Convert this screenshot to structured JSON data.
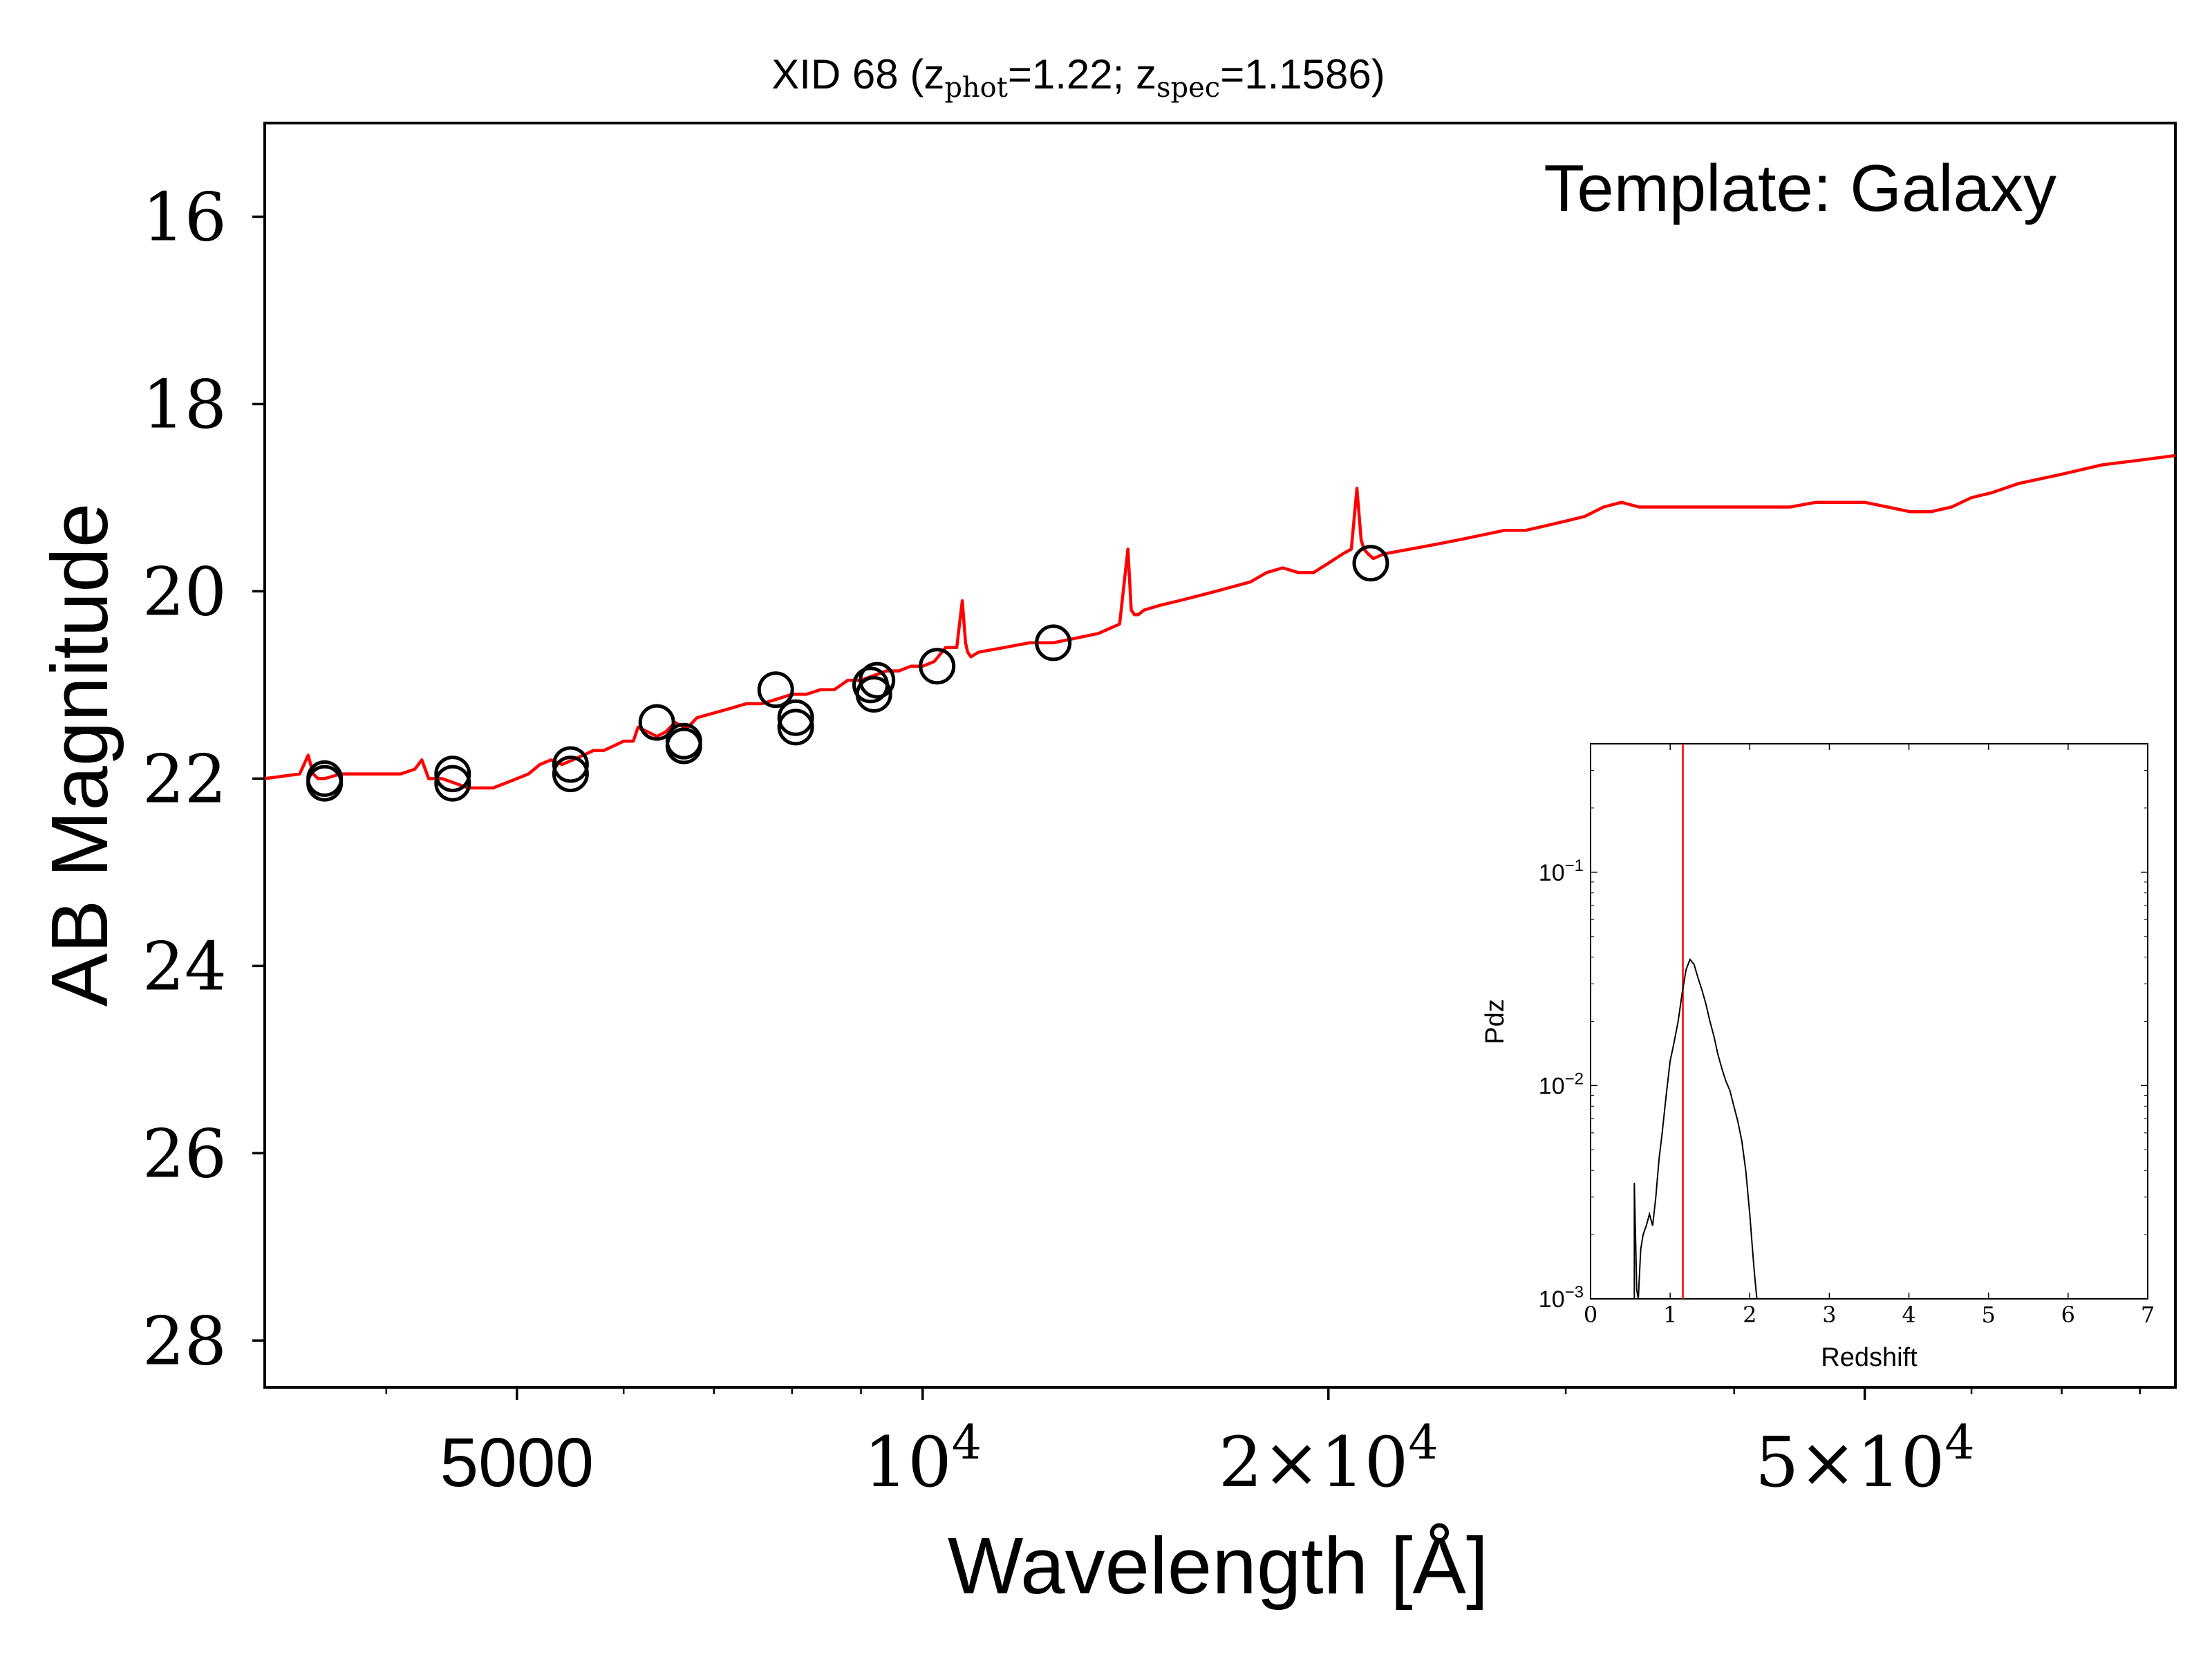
{
  "chart_data": [
    {
      "type": "line",
      "title": "XID 68 (z_phot=1.22; z_spec=1.1586)",
      "title_parts": {
        "prefix": "XID 68 (z",
        "sub1": "phot",
        "mid": "=1.22; z",
        "sub2": "spec",
        "suffix": "=1.1586)"
      },
      "xlabel": "Wavelength [Å]",
      "ylabel": "AB Magnitude",
      "x_scale": "log",
      "y_inverted": true,
      "xlim": [
        3250,
        85000
      ],
      "ylim": [
        28.5,
        15
      ],
      "grid": false,
      "x_ticks": [
        {
          "value": 5000,
          "label": "5000"
        },
        {
          "value": 10000,
          "base": "10",
          "exp": "4"
        },
        {
          "value": 20000,
          "mant": "2×10",
          "exp": "4"
        },
        {
          "value": 50000,
          "mant": "5×10",
          "exp": "4"
        }
      ],
      "y_ticks": [
        16,
        18,
        20,
        22,
        24,
        26,
        28
      ],
      "annotation": "Template: Galaxy",
      "series": [
        {
          "kind": "line",
          "color": "#ff0000",
          "x": [
            3250,
            3450,
            3500,
            3530,
            3560,
            3600,
            3700,
            3800,
            3900,
            4000,
            4100,
            4200,
            4250,
            4300,
            4400,
            4500,
            4600,
            4700,
            4800,
            4900,
            5000,
            5100,
            5200,
            5300,
            5400,
            5500,
            5600,
            5700,
            5800,
            5900,
            6000,
            6100,
            6150,
            6250,
            6350,
            6450,
            6550,
            6650,
            6700,
            6800,
            7000,
            7200,
            7400,
            7600,
            7800,
            8000,
            8200,
            8400,
            8600,
            8800,
            9000,
            9200,
            9400,
            9600,
            9800,
            10000,
            10200,
            10400,
            10600,
            10700,
            10760,
            10800,
            10860,
            11000,
            11500,
            12000,
            12500,
            13000,
            13500,
            14000,
            14100,
            14200,
            14280,
            14360,
            14450,
            14600,
            15000,
            15500,
            16000,
            16500,
            17000,
            17500,
            18000,
            18500,
            19000,
            19500,
            20000,
            20500,
            20800,
            21000,
            21150,
            21250,
            21400,
            21600,
            22000,
            23000,
            24000,
            25000,
            26000,
            27000,
            28000,
            29000,
            30000,
            31000,
            32000,
            33000,
            34000,
            35000,
            36000,
            38000,
            40000,
            42000,
            44000,
            46000,
            48000,
            50000,
            52000,
            54000,
            56000,
            58000,
            60000,
            62000,
            65000,
            70000,
            75000,
            80000,
            85000
          ],
          "y": [
            22.0,
            21.95,
            21.75,
            21.95,
            22.0,
            22.0,
            21.95,
            21.95,
            21.95,
            21.95,
            21.95,
            21.9,
            21.8,
            22.0,
            22.0,
            22.05,
            22.1,
            22.1,
            22.1,
            22.05,
            22.0,
            21.95,
            21.85,
            21.8,
            21.85,
            21.8,
            21.75,
            21.7,
            21.7,
            21.65,
            21.6,
            21.6,
            21.45,
            21.5,
            21.55,
            21.5,
            21.4,
            21.45,
            21.45,
            21.35,
            21.3,
            21.25,
            21.2,
            21.2,
            21.15,
            21.1,
            21.1,
            21.05,
            21.05,
            20.95,
            20.95,
            20.9,
            20.85,
            20.85,
            20.8,
            20.8,
            20.75,
            20.6,
            20.6,
            20.1,
            20.55,
            20.65,
            20.7,
            20.65,
            20.6,
            20.55,
            20.55,
            20.5,
            20.45,
            20.35,
            19.95,
            19.55,
            20.2,
            20.25,
            20.25,
            20.2,
            20.15,
            20.1,
            20.05,
            20.0,
            19.95,
            19.9,
            19.8,
            19.75,
            19.8,
            19.8,
            19.7,
            19.6,
            19.55,
            18.9,
            19.45,
            19.55,
            19.6,
            19.65,
            19.6,
            19.55,
            19.5,
            19.45,
            19.4,
            19.35,
            19.35,
            19.3,
            19.25,
            19.2,
            19.1,
            19.05,
            19.1,
            19.1,
            19.1,
            19.1,
            19.1,
            19.1,
            19.1,
            19.05,
            19.05,
            19.05,
            19.1,
            19.15,
            19.15,
            19.1,
            19.0,
            18.95,
            18.85,
            18.75,
            18.65,
            18.6,
            18.55
          ]
        },
        {
          "kind": "markers",
          "marker": "open-circle",
          "color": "#000000",
          "x": [
            3600,
            3600,
            4480,
            4480,
            5480,
            5480,
            6350,
            6650,
            6650,
            7780,
            8050,
            8050,
            9200,
            9250,
            9150,
            10250,
            12500,
            21500
          ],
          "y": [
            22.0,
            22.05,
            22.05,
            21.95,
            21.85,
            21.95,
            21.4,
            21.65,
            21.6,
            21.05,
            21.35,
            21.45,
            21.1,
            20.95,
            21.0,
            20.8,
            20.55,
            19.7
          ]
        }
      ]
    },
    {
      "type": "line",
      "title": "",
      "xlabel": "Redshift",
      "ylabel": "Pdz",
      "y_scale": "log",
      "xlim": [
        0,
        7
      ],
      "ylim": [
        0.001,
        0.4
      ],
      "grid": false,
      "x_ticks": [
        "0",
        "1",
        "2",
        "3",
        "4",
        "5",
        "6",
        "7"
      ],
      "y_ticks": [
        {
          "value": 0.001,
          "base": "10",
          "exp": "−3"
        },
        {
          "value": 0.01,
          "base": "10",
          "exp": "−2"
        },
        {
          "value": 0.1,
          "base": "10",
          "exp": "−1"
        }
      ],
      "vline": {
        "x": 1.16,
        "color": "#ff0000"
      },
      "series": [
        {
          "kind": "line",
          "color": "#000000",
          "x": [
            0.55,
            0.55,
            0.58,
            0.6,
            0.63,
            0.66,
            0.7,
            0.74,
            0.78,
            0.82,
            0.86,
            0.9,
            0.95,
            1.0,
            1.05,
            1.1,
            1.15,
            1.2,
            1.25,
            1.3,
            1.35,
            1.4,
            1.45,
            1.5,
            1.55,
            1.6,
            1.65,
            1.7,
            1.75,
            1.8,
            1.85,
            1.9,
            1.95,
            2.0,
            2.03,
            2.06,
            2.09
          ],
          "y": [
            0.001,
            0.0035,
            0.0011,
            0.001,
            0.0017,
            0.002,
            0.0022,
            0.0025,
            0.0022,
            0.003,
            0.0045,
            0.006,
            0.009,
            0.013,
            0.016,
            0.02,
            0.027,
            0.035,
            0.039,
            0.037,
            0.032,
            0.028,
            0.024,
            0.02,
            0.017,
            0.014,
            0.012,
            0.0105,
            0.0095,
            0.008,
            0.0068,
            0.0055,
            0.004,
            0.0025,
            0.0018,
            0.0013,
            0.001
          ]
        }
      ]
    }
  ]
}
